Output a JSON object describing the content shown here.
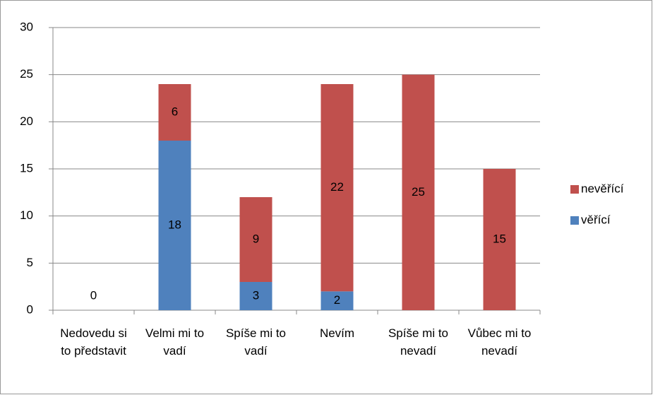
{
  "chart_data": {
    "type": "stacked_bar",
    "categories": [
      "Nedovedu si to představit",
      "Velmi mi to vadí",
      "Spíše mi to vadí",
      "Nevím",
      "Spíše mi to nevadí",
      "Vůbec mi to nevadí"
    ],
    "series": [
      {
        "name": "věřící",
        "color": "#4f81bd",
        "values": [
          0,
          18,
          3,
          2,
          0,
          0
        ]
      },
      {
        "name": "nevěřící",
        "color": "#c0504d",
        "values": [
          0,
          6,
          9,
          22,
          25,
          15
        ]
      }
    ],
    "ylim": [
      0,
      30
    ],
    "yticks": [
      0,
      5,
      10,
      15,
      20,
      25,
      30
    ],
    "grid": true,
    "legend": "right"
  }
}
